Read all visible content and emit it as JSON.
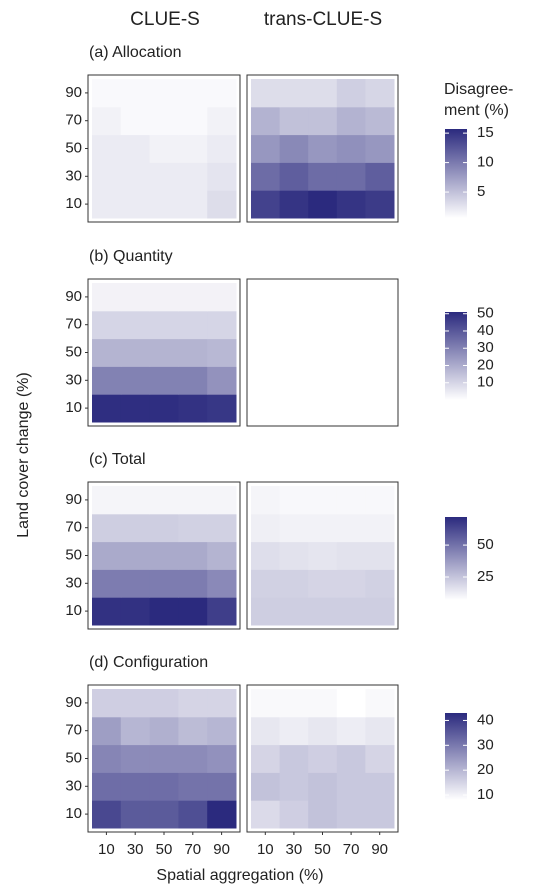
{
  "chart_data": {
    "type": "heatmap",
    "column_titles": [
      "CLUE-S",
      "trans-CLUE-S"
    ],
    "x_label": "Spatial aggregation (%)",
    "y_label": "Land cover change (%)",
    "legend_title": [
      "Disagree-",
      "ment (%)"
    ],
    "color_low": "#ffffff",
    "color_high": "#2b2a7e",
    "x": [
      10,
      30,
      50,
      70,
      90
    ],
    "y": [
      10,
      30,
      50,
      70,
      90
    ],
    "panels": [
      {
        "title": "(a) Allocation",
        "colorbar_lim": [
          0.6,
          15.7
        ],
        "colorbar_ticks": [
          5,
          10,
          15
        ],
        "cells": [
          [
            [
              2,
              2,
              2,
              2,
              3
            ],
            [
              2,
              2,
              2,
              2,
              2.5
            ],
            [
              2,
              2,
              1.5,
              1.5,
              2
            ],
            [
              1.5,
              1,
              1,
              1,
              1.5
            ],
            [
              1,
              1,
              1,
              1,
              1
            ]
          ],
          [
            [
              14,
              15,
              15.7,
              15,
              14.5
            ],
            [
              11,
              12,
              11,
              11,
              12
            ],
            [
              8,
              9,
              8,
              8.5,
              8
            ],
            [
              6,
              5,
              5,
              6,
              5.5
            ],
            [
              3,
              3,
              3,
              4,
              3.5
            ]
          ]
        ]
      },
      {
        "title": "(b) Quantity",
        "colorbar_lim": [
          0,
          51
        ],
        "colorbar_ticks": [
          10,
          20,
          30,
          40,
          50
        ],
        "cells": [
          [
            [
              50,
              50,
              50,
              49,
              48
            ],
            [
              30,
              30,
              30,
              30,
              26
            ],
            [
              18,
              18,
              18,
              18,
              17
            ],
            [
              10,
              10,
              10,
              10,
              10
            ],
            [
              3,
              3,
              3,
              3,
              3
            ]
          ],
          [
            [
              null,
              null,
              null,
              null,
              null
            ],
            [
              null,
              null,
              null,
              null,
              null
            ],
            [
              null,
              null,
              null,
              null,
              null
            ],
            [
              null,
              null,
              null,
              null,
              null
            ],
            [
              null,
              null,
              null,
              null,
              null
            ]
          ]
        ]
      },
      {
        "title": "(c) Total",
        "colorbar_lim": [
          7,
          72
        ],
        "colorbar_ticks": [
          25,
          50
        ],
        "cells": [
          [
            [
              70,
              70,
              72,
              72,
              66
            ],
            [
              47,
              47,
              47,
              47,
              43
            ],
            [
              33,
              33,
              33,
              33,
              30
            ],
            [
              22,
              22,
              22,
              21,
              21
            ],
            [
              10,
              10,
              10,
              10,
              10
            ]
          ],
          [
            [
              22,
              22,
              22,
              22,
              22
            ],
            [
              21,
              21,
              20,
              20,
              21
            ],
            [
              17,
              16,
              15,
              16,
              16
            ],
            [
              12,
              11,
              11,
              11,
              11
            ],
            [
              10,
              9,
              9,
              9,
              9
            ]
          ]
        ]
      },
      {
        "title": "(d) Configuration",
        "colorbar_lim": [
          8,
          43
        ],
        "colorbar_ticks": [
          10,
          20,
          30,
          40
        ],
        "cells": [
          [
            [
              38,
              35,
              35,
              37,
              43
            ],
            [
              32,
              32,
              32,
              31,
              31
            ],
            [
              28,
              27,
              27,
              27,
              26
            ],
            [
              24,
              20,
              21,
              19,
              20
            ],
            [
              16,
              16,
              16,
              15,
              15
            ]
          ],
          [
            [
              14,
              16,
              18,
              17,
              17
            ],
            [
              18,
              17,
              18,
              17,
              17
            ],
            [
              15,
              17,
              16,
              17,
              15
            ],
            [
              12,
              11,
              12,
              11,
              12
            ],
            [
              9,
              9,
              9,
              8,
              9
            ]
          ]
        ]
      }
    ]
  }
}
